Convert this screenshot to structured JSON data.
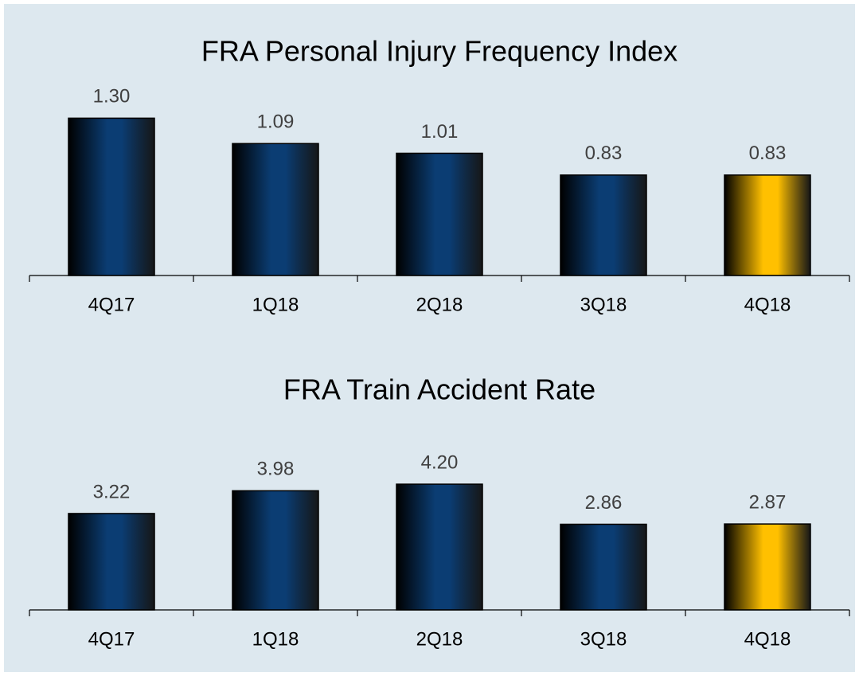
{
  "chart_data": [
    {
      "type": "bar",
      "title": "FRA Personal Injury Frequency Index",
      "categories": [
        "4Q17",
        "1Q18",
        "2Q18",
        "3Q18",
        "4Q18"
      ],
      "values": [
        1.3,
        1.09,
        1.01,
        0.83,
        0.83
      ],
      "value_labels": [
        "1.30",
        "1.09",
        "1.01",
        "0.83",
        "0.83"
      ],
      "colors": [
        "#0b3d73",
        "#0b3d73",
        "#0b3d73",
        "#0b3d73",
        "#ffc000"
      ],
      "ylim": [
        0,
        1.5
      ]
    },
    {
      "type": "bar",
      "title": "FRA Train Accident Rate",
      "categories": [
        "4Q17",
        "1Q18",
        "2Q18",
        "3Q18",
        "4Q18"
      ],
      "values": [
        3.22,
        3.98,
        4.2,
        2.86,
        2.87
      ],
      "value_labels": [
        "3.22",
        "3.98",
        "4.20",
        "2.86",
        "2.87"
      ],
      "colors": [
        "#0b3d73",
        "#0b3d73",
        "#0b3d73",
        "#0b3d73",
        "#ffc000"
      ],
      "ylim": [
        0,
        5
      ]
    }
  ]
}
